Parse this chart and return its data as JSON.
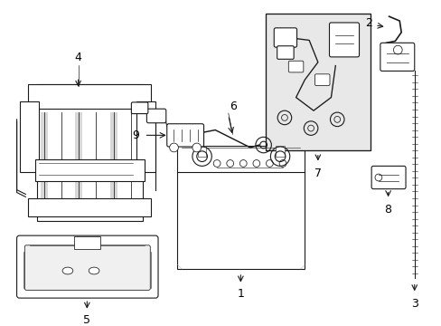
{
  "bg_color": "#ffffff",
  "line_color": "#1a1a1a",
  "gray_fill": "#d8d8d8",
  "light_fill": "#f0f0f0",
  "inset_fill": "#e8e8e8",
  "figsize": [
    4.89,
    3.6
  ],
  "dpi": 100
}
